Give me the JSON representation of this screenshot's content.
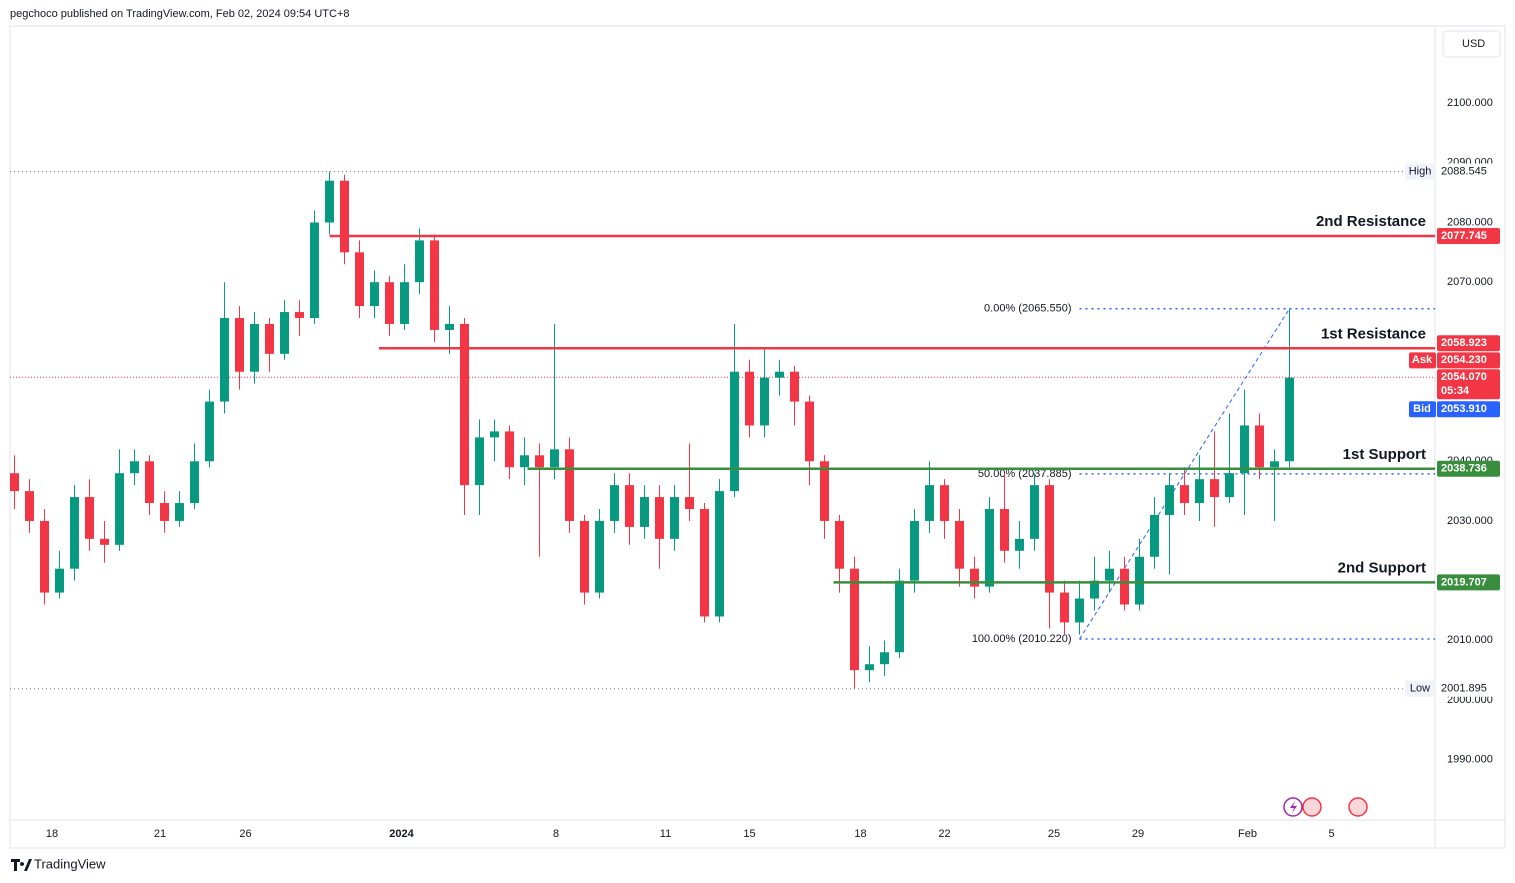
{
  "header": {
    "published": "pegchoco published on TradingView.com, Feb 02, 2024 09:54 UTC+8",
    "currency": "USD",
    "brand": "TradingView"
  },
  "chart_data": {
    "type": "candlestick",
    "xlim": [
      -0.3,
      94.7
    ],
    "ylim": [
      1979.9,
      2115.6
    ],
    "xticks": [
      {
        "value": 2.5,
        "label": "18"
      },
      {
        "value": 9.7,
        "label": "21"
      },
      {
        "value": 15.4,
        "label": "26"
      },
      {
        "value": 25.8,
        "label": "2024"
      },
      {
        "value": 36.1,
        "label": "8"
      },
      {
        "value": 43.4,
        "label": "11"
      },
      {
        "value": 49,
        "label": "15"
      },
      {
        "value": 56.4,
        "label": "18"
      },
      {
        "value": 62,
        "label": "22"
      },
      {
        "value": 69.3,
        "label": "25"
      },
      {
        "value": 74.9,
        "label": "29"
      },
      {
        "value": 82.2,
        "label": "Feb"
      },
      {
        "value": 87.8,
        "label": "5"
      }
    ],
    "yticks": [
      {
        "value": 2100,
        "label": "2100.000"
      },
      {
        "value": 2090,
        "label": "2090.000"
      },
      {
        "value": 2080,
        "label": "2080.000"
      },
      {
        "value": 2070,
        "label": "2070.000"
      },
      {
        "value": 2040,
        "label": "2040.000"
      },
      {
        "value": 2030,
        "label": "2030.000"
      },
      {
        "value": 2010,
        "label": "2010.000"
      },
      {
        "value": 2000,
        "label": "2000.000"
      },
      {
        "value": 1990,
        "label": "1990.000"
      }
    ],
    "colors": {
      "up": "#089981",
      "down": "#f23645"
    },
    "open": [
      2038,
      2035,
      2030,
      2018,
      2022,
      2034,
      2027,
      2026,
      2038,
      2040,
      2033,
      2030,
      2033,
      2040,
      2050,
      2064,
      2055,
      2063,
      2058,
      2065,
      2064,
      2080,
      2087,
      2075,
      2066,
      2070,
      2063,
      2070,
      2077,
      2062,
      2063,
      2036,
      2044,
      2045,
      2039,
      2041,
      2039,
      2042,
      2030,
      2018,
      2030,
      2036,
      2029,
      2034,
      2027,
      2034,
      2032,
      2014,
      2035,
      2055,
      2046,
      2054,
      2055,
      2050,
      2040,
      2030,
      2022,
      2005,
      2006,
      2008,
      2020,
      2030,
      2036,
      2030,
      2022,
      2019,
      2032,
      2025,
      2027,
      2036,
      2018,
      2013,
      2017,
      2020,
      2022,
      2016,
      2024,
      2031,
      2036,
      2033,
      2037,
      2034,
      2038,
      2046,
      2039,
      2040
    ],
    "high": [
      2041,
      2037,
      2032,
      2025,
      2036,
      2037,
      2030,
      2042,
      2042,
      2041,
      2035,
      2035,
      2043,
      2052,
      2070,
      2066,
      2065,
      2064,
      2067,
      2067,
      2082,
      2088.545,
      2088,
      2077,
      2072,
      2071,
      2073,
      2079,
      2078,
      2066,
      2064,
      2047,
      2047,
      2046,
      2044,
      2043,
      2063,
      2044,
      2031,
      2032,
      2038,
      2038,
      2036,
      2036,
      2036,
      2043,
      2033,
      2037,
      2063,
      2057,
      2059,
      2057,
      2056,
      2051,
      2041,
      2031,
      2024,
      2009,
      2010,
      2022,
      2032,
      2040,
      2037,
      2032,
      2024,
      2034,
      2038,
      2030,
      2038,
      2037,
      2020,
      2020,
      2024,
      2025,
      2024,
      2027,
      2034,
      2038,
      2039,
      2041,
      2045,
      2048,
      2052,
      2048,
      2042,
      2065.55
    ],
    "low": [
      2032,
      2028,
      2016,
      2017,
      2020,
      2025,
      2023,
      2025,
      2036,
      2031,
      2028,
      2029,
      2032,
      2039,
      2048,
      2052,
      2053,
      2055,
      2057,
      2061,
      2063,
      2078,
      2073,
      2064,
      2064,
      2061,
      2062,
      2068,
      2060,
      2058,
      2031,
      2031,
      2040,
      2037,
      2036,
      2024,
      2037,
      2028,
      2016,
      2017,
      2028,
      2026,
      2027,
      2022,
      2025,
      2030,
      2013,
      2013,
      2034,
      2044,
      2044,
      2051,
      2046,
      2036,
      2027,
      2018,
      2001.895,
      2003,
      2004,
      2007,
      2018,
      2028,
      2027,
      2019,
      2017,
      2018,
      2023,
      2022,
      2025,
      2012,
      2011,
      2011,
      2015,
      2018,
      2015,
      2015,
      2022,
      2021,
      2031,
      2030,
      2029,
      2033,
      2031,
      2037,
      2030,
      2039
    ],
    "close": [
      2035,
      2030,
      2018,
      2022,
      2034,
      2027,
      2026,
      2038,
      2040,
      2033,
      2030,
      2033,
      2040,
      2050,
      2064,
      2055,
      2063,
      2058,
      2065,
      2064,
      2080,
      2087,
      2075,
      2066,
      2070,
      2063,
      2070,
      2077,
      2062,
      2063,
      2036,
      2044,
      2045,
      2039,
      2041,
      2039,
      2042,
      2030,
      2018,
      2030,
      2036,
      2029,
      2034,
      2027,
      2034,
      2032,
      2014,
      2035,
      2055,
      2046,
      2054,
      2055,
      2050,
      2040,
      2030,
      2022,
      2005,
      2006,
      2008,
      2020,
      2030,
      2036,
      2030,
      2022,
      2019,
      2032,
      2025,
      2027,
      2036,
      2018,
      2013,
      2017,
      2020,
      2022,
      2016,
      2024,
      2031,
      2036,
      2033,
      2037,
      2034,
      2038,
      2046,
      2039,
      2040,
      2054
    ],
    "levels": [
      {
        "name": "2nd Resistance",
        "value": 2077.745,
        "label": "2077.745",
        "from": 21,
        "color": "#f23645"
      },
      {
        "name": "1st Resistance",
        "value": 2058.923,
        "label": "2058.923",
        "from": 24.3,
        "color": "#f23645"
      },
      {
        "name": "1st Support",
        "value": 2038.736,
        "label": "2038.736",
        "from": 34.2,
        "color": "#388e3c"
      },
      {
        "name": "2nd Support",
        "value": 2019.707,
        "label": "2019.707",
        "from": 54.6,
        "color": "#388e3c"
      }
    ],
    "fib_from": 71,
    "fib_to": 85,
    "fib": [
      {
        "label": "0.00% (2065.550)",
        "value": 2065.55
      },
      {
        "label": "50.00% (2037.885)",
        "value": 2037.885
      },
      {
        "label": "100.00% (2010.220)",
        "value": 2010.22
      }
    ],
    "extremes": [
      {
        "name": "High",
        "value": 2088.545,
        "label": "2088.545"
      },
      {
        "name": "Low",
        "value": 2001.895,
        "label": "2001.895"
      }
    ],
    "quotes": [
      {
        "name": "Ask",
        "value": 2054.23,
        "label": "2054.230",
        "color": "#f23645"
      },
      {
        "name": "Bid",
        "value": 2053.91,
        "label": "2053.910",
        "color": "#2962ff"
      }
    ],
    "last": {
      "value": 2054.07,
      "label": "2054.070",
      "countdown": "05:34",
      "color": "#f23645"
    }
  }
}
